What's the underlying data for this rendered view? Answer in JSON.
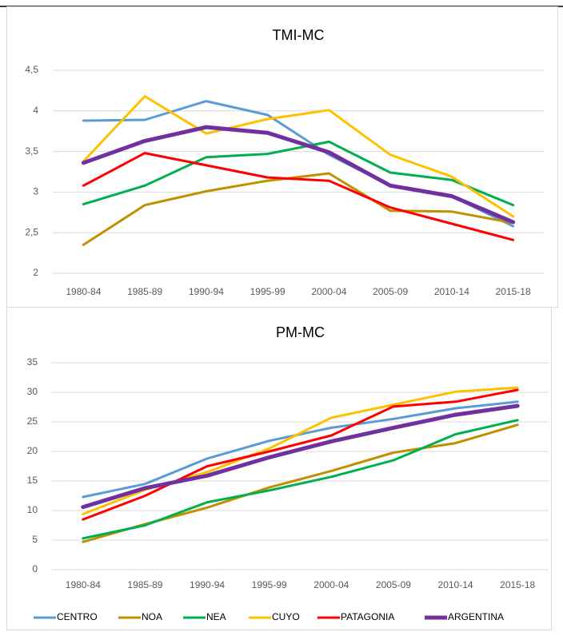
{
  "chart_data": [
    {
      "type": "line",
      "title": "TMI-MC",
      "categories": [
        "1980-84",
        "1985-89",
        "1990-94",
        "1995-99",
        "2000-04",
        "2005-09",
        "2010-14",
        "2015-18"
      ],
      "ylim": [
        2,
        4.5
      ],
      "yticks": [
        2,
        {
          "value": 2.5,
          "label": "2,5"
        },
        3,
        {
          "value": 3.5,
          "label": "3,5"
        },
        4,
        {
          "value": 4.5,
          "label": "4,5"
        }
      ],
      "grid": true,
      "series": [
        {
          "name": "CENTRO",
          "color": "#5b9bd5",
          "values": [
            3.88,
            3.89,
            4.12,
            3.95,
            3.46,
            3.08,
            2.95,
            2.58
          ]
        },
        {
          "name": "NOA",
          "color": "#bf9000",
          "values": [
            2.35,
            2.84,
            3.01,
            3.14,
            3.23,
            2.77,
            2.76,
            2.62
          ]
        },
        {
          "name": "NEA",
          "color": "#00b050",
          "values": [
            2.85,
            3.08,
            3.43,
            3.47,
            3.62,
            3.24,
            3.15,
            2.84
          ]
        },
        {
          "name": "CUYO",
          "color": "#ffc000",
          "values": [
            3.38,
            4.18,
            3.72,
            3.9,
            4.01,
            3.46,
            3.19,
            2.7
          ]
        },
        {
          "name": "PATAGONIA",
          "color": "#ff0000",
          "values": [
            3.08,
            3.48,
            3.33,
            3.18,
            3.14,
            2.81,
            2.61,
            2.41
          ]
        },
        {
          "name": "ARGENTINA",
          "color": "#7030a0",
          "values": [
            3.36,
            3.63,
            3.8,
            3.73,
            3.49,
            3.08,
            2.95,
            2.63
          ]
        }
      ]
    },
    {
      "type": "line",
      "title": "PM-MC",
      "categories": [
        "1980-84",
        "1985-89",
        "1990-94",
        "1995-99",
        "2000-04",
        "2005-09",
        "2010-14",
        "2015-18"
      ],
      "ylim": [
        0,
        35
      ],
      "yticks": [
        0,
        5,
        10,
        15,
        20,
        25,
        30,
        35
      ],
      "grid": true,
      "legend": "bottom",
      "series": [
        {
          "name": "CENTRO",
          "color": "#5b9bd5",
          "values": [
            12.3,
            14.5,
            18.8,
            21.8,
            24,
            25.5,
            27.3,
            28.4
          ]
        },
        {
          "name": "NOA",
          "color": "#bf9000",
          "values": [
            4.7,
            7.7,
            10.5,
            13.9,
            16.7,
            19.8,
            21.4,
            24.5
          ]
        },
        {
          "name": "NEA",
          "color": "#00b050",
          "values": [
            5.3,
            7.5,
            11.4,
            13.4,
            15.7,
            18.5,
            22.9,
            25.3
          ]
        },
        {
          "name": "CUYO",
          "color": "#ffc000",
          "values": [
            9.4,
            13.5,
            16.5,
            20.5,
            25.7,
            27.9,
            30.1,
            30.8
          ]
        },
        {
          "name": "PATAGONIA",
          "color": "#ff0000",
          "values": [
            8.5,
            12.5,
            17.5,
            20,
            22.7,
            27.6,
            28.4,
            30.4
          ]
        },
        {
          "name": "ARGENTINA",
          "color": "#7030a0",
          "values": [
            10.6,
            13.8,
            15.9,
            19,
            21.7,
            24,
            26.2,
            27.7
          ]
        }
      ]
    }
  ]
}
